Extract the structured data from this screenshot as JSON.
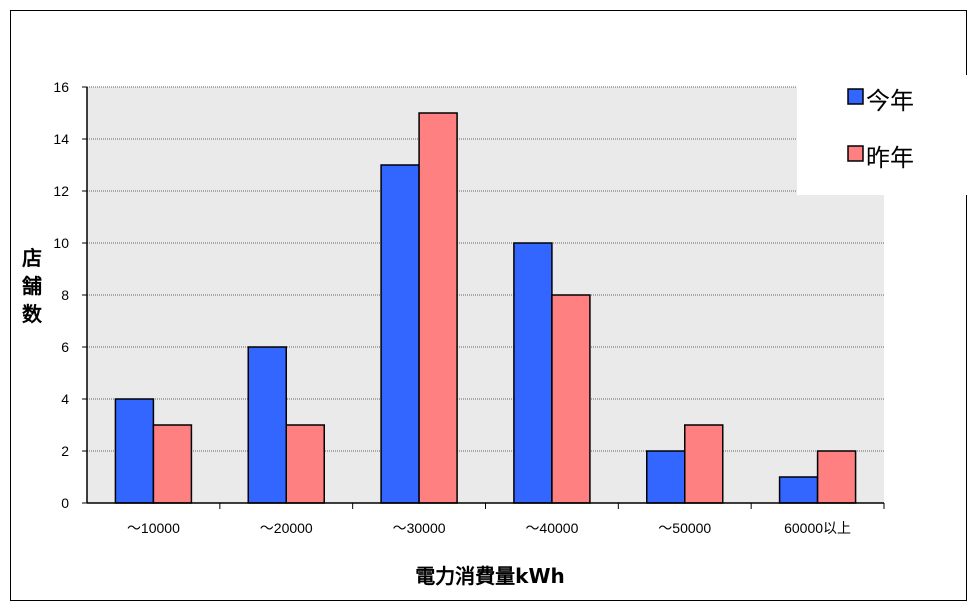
{
  "chart_data": {
    "type": "bar",
    "categories": [
      "～10000",
      "～20000",
      "～30000",
      "～40000",
      "～50000",
      "60000以上"
    ],
    "series": [
      {
        "name": "今年",
        "values": [
          4,
          6,
          13,
          10,
          2,
          1
        ],
        "color": "#3366ff"
      },
      {
        "name": "昨年",
        "values": [
          3,
          3,
          15,
          8,
          3,
          2
        ],
        "color": "#ff8080"
      }
    ],
    "ylim": [
      0,
      16
    ],
    "yticks": [
      0,
      2,
      4,
      6,
      8,
      10,
      12,
      14,
      16
    ],
    "xlabel": "電力消費量kWh",
    "ylabel": "店舗数",
    "grid": true,
    "legend_position": "top-right",
    "plot_background": "#eaeaea"
  }
}
